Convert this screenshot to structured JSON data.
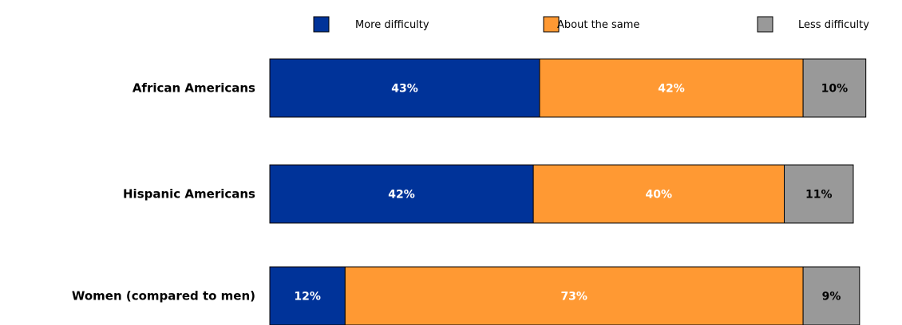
{
  "chart_data": {
    "type": "bar",
    "orientation": "horizontal",
    "stacked": true,
    "categories": [
      "African Americans",
      "Hispanic Americans",
      "Women (compared to men)"
    ],
    "series": [
      {
        "name": "More difficulty",
        "values": [
          43,
          42,
          12
        ],
        "labels": [
          "43%",
          "42%",
          "12%"
        ],
        "color": "#003399",
        "label_color": "#ffffff"
      },
      {
        "name": "About the same",
        "values": [
          42,
          40,
          73
        ],
        "labels": [
          "42%",
          "40%",
          "73%"
        ],
        "color": "#ff9933",
        "label_color": "#ffffff"
      },
      {
        "name": "Less difficulty",
        "values": [
          10,
          11,
          9
        ],
        "labels": [
          "10%",
          "11%",
          "9%"
        ],
        "color": "#999999",
        "label_color": "#000000"
      }
    ],
    "unit": "%",
    "xlim": [
      0,
      100
    ],
    "grid": false,
    "legend_position": "top"
  }
}
